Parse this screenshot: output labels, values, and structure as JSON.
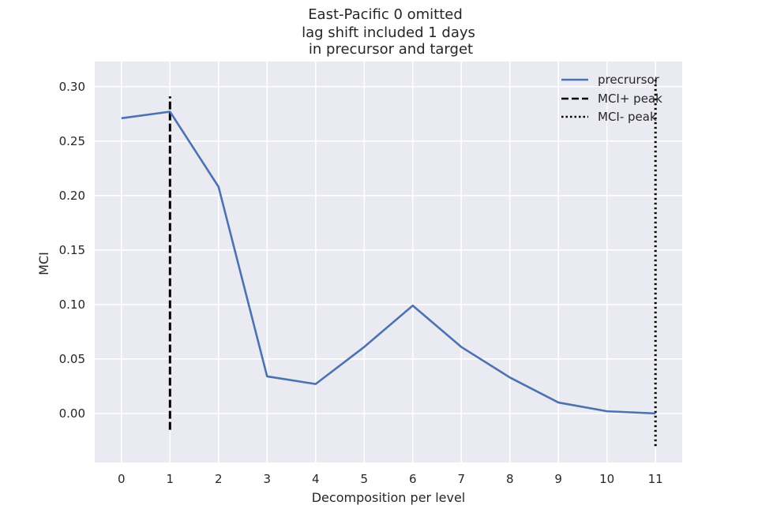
{
  "chart_data": {
    "type": "line",
    "title": [
      "East-Pacific 0 omitted",
      "lag shift included 1 days",
      "in precursor and target"
    ],
    "xlabel": "Decomposition per level",
    "ylabel": "MCI",
    "x": [
      0,
      1,
      2,
      3,
      4,
      5,
      6,
      7,
      8,
      9,
      10,
      11
    ],
    "xticks": [
      "0",
      "1",
      "2",
      "3",
      "4",
      "5",
      "6",
      "7",
      "8",
      "9",
      "10",
      "11"
    ],
    "yticks": [
      "0.00",
      "0.05",
      "0.10",
      "0.15",
      "0.20",
      "0.25",
      "0.30"
    ],
    "xlim": [
      -0.55,
      11.55
    ],
    "ylim": [
      -0.045,
      0.323
    ],
    "grid": true,
    "legend_position": "top-right",
    "series": [
      {
        "name": "precrursor",
        "color": "#4c72b0",
        "style": "solid",
        "values": [
          0.271,
          0.277,
          0.208,
          0.034,
          0.027,
          0.061,
          0.099,
          0.061,
          0.033,
          0.01,
          0.002,
          0.0
        ]
      }
    ],
    "vlines": [
      {
        "name": "MCI+ peak",
        "x": 1,
        "y_range": [
          -0.015,
          0.291
        ],
        "color": "#000000",
        "style": "dashed"
      },
      {
        "name": "MCI- peak",
        "x": 11,
        "y_range": [
          -0.03,
          0.308
        ],
        "color": "#000000",
        "style": "dotted"
      }
    ],
    "colors": {
      "background": "#eaeaf2",
      "grid": "#ffffff"
    }
  }
}
